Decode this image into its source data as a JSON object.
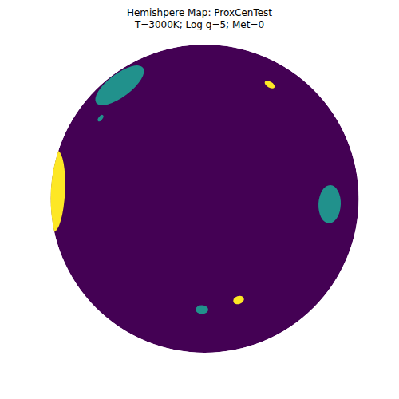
{
  "chart_data": {
    "type": "hemisphere_map",
    "title": [
      "Hemishpere Map: ProxCenTest",
      "T=3000K; Log g=5; Met=0"
    ],
    "xlim": [
      -1,
      1
    ],
    "ylim": [
      -1,
      1
    ],
    "tick_labels": false,
    "color": "#440154",
    "spots": {
      "x": [
        -0.552,
        -0.676,
        0.422,
        -0.97,
        0.811,
        -0.018,
        0.22
      ],
      "y": [
        0.736,
        0.523,
        0.741,
        0.047,
        -0.036,
        -0.72,
        -0.658
      ],
      "r": [
        0.19,
        0.025,
        0.036,
        0.265,
        0.124,
        0.041,
        0.036
      ],
      "colors": [
        "#21918c",
        "#21918c",
        "#fde725",
        "#fde725",
        "#21918c",
        "#21918c",
        "#fde725"
      ]
    }
  }
}
